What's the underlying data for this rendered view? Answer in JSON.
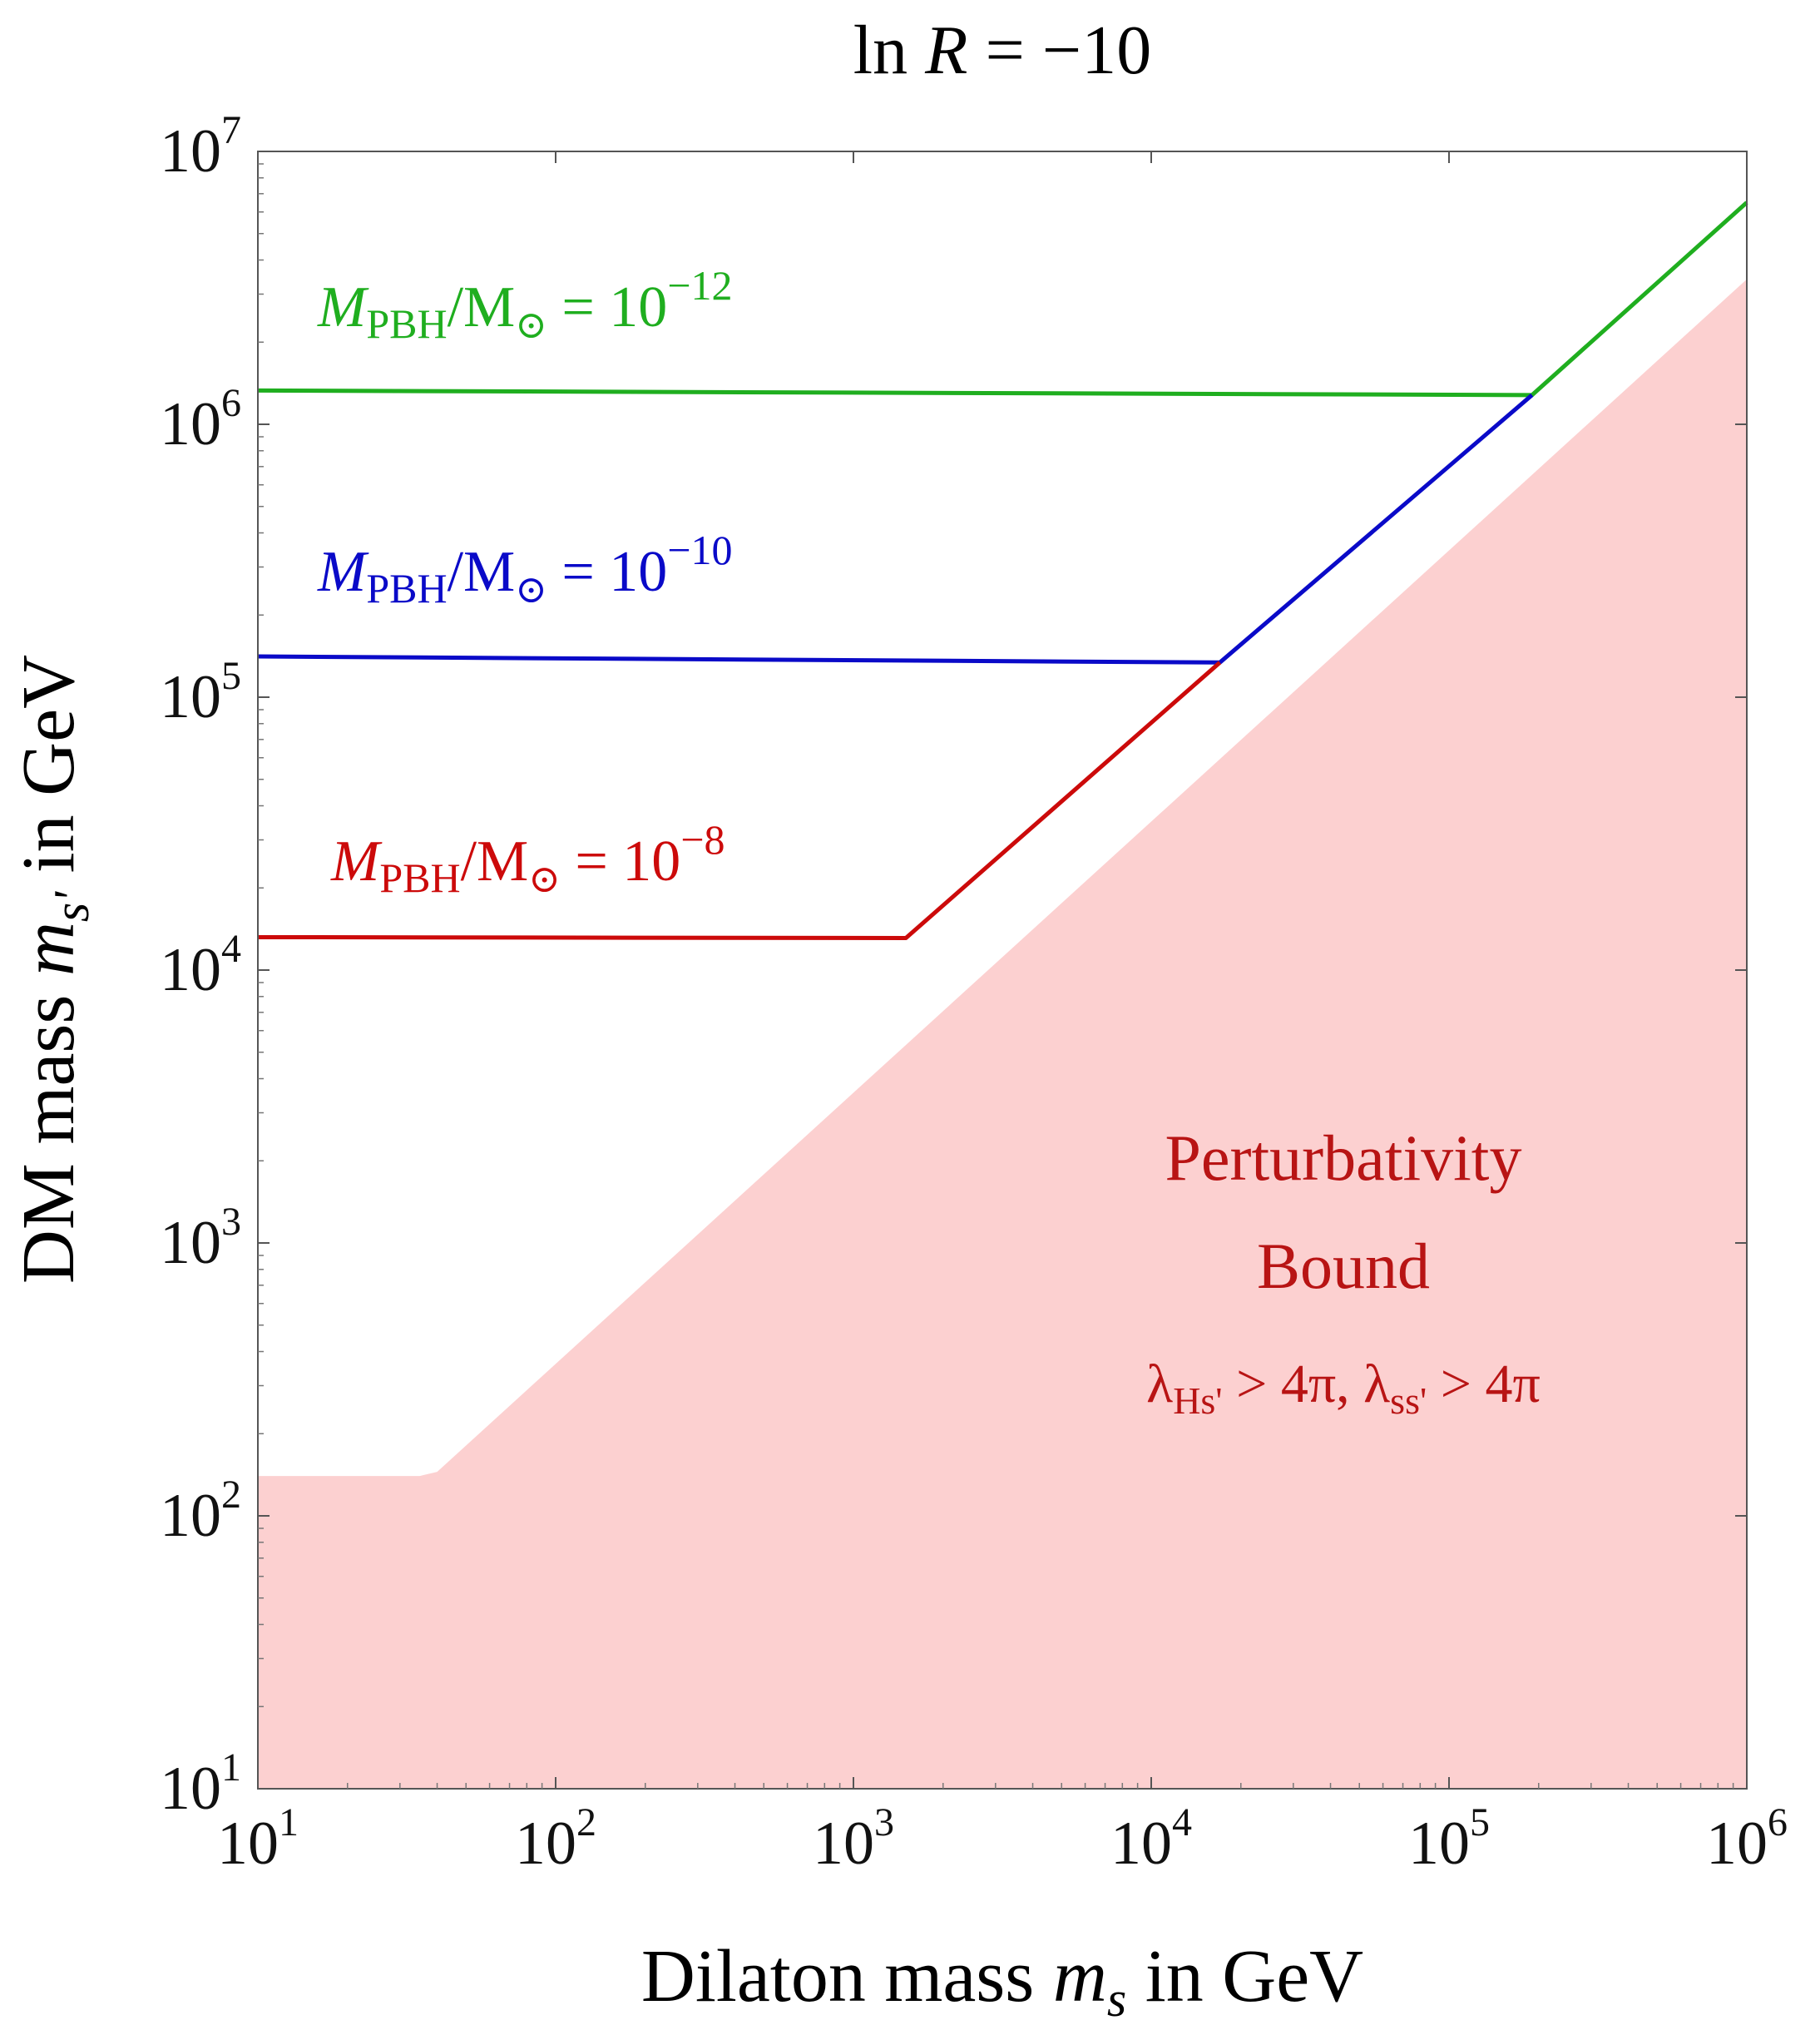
{
  "chart_data": {
    "type": "line",
    "title": "ln R = −10",
    "xlabel": "Dilaton mass m_s in GeV",
    "ylabel": "DM mass m_{s'} in GeV",
    "x_scale": "log",
    "y_scale": "log",
    "xlim": [
      10,
      1000000
    ],
    "ylim": [
      10,
      10000000
    ],
    "x_ticks": [
      "10^1",
      "10^2",
      "10^3",
      "10^4",
      "10^5",
      "10^6"
    ],
    "y_ticks": [
      "10^1",
      "10^2",
      "10^3",
      "10^4",
      "10^5",
      "10^6",
      "10^7"
    ],
    "grid": false,
    "series": [
      {
        "name": "M_PBH/M_⊙ = 10^{−12}",
        "color": "#1fae1f",
        "points": [
          [
            10,
            1330000
          ],
          [
            190000,
            1280000
          ],
          [
            1000000,
            6500000
          ]
        ]
      },
      {
        "name": "M_PBH/M_⊙ = 10^{−10}",
        "color": "#0a0ac8",
        "points": [
          [
            10,
            141000
          ],
          [
            17000,
            134000
          ],
          [
            190000,
            1280000
          ]
        ]
      },
      {
        "name": "M_PBH/M_⊙ = 10^{−8}",
        "color": "#cc0a0a",
        "points": [
          [
            10,
            13200
          ],
          [
            1500,
            13100
          ],
          [
            17000,
            134000
          ]
        ]
      }
    ],
    "regions": [
      {
        "name": "Perturbativity Bound",
        "condition": "λ_{Hs'} > 4π, λ_{ss'} > 4π",
        "fill": "#fcd0d0",
        "boundary": [
          [
            10,
            140
          ],
          [
            35,
            140
          ],
          [
            40,
            145
          ],
          [
            1000000,
            3400000
          ]
        ]
      }
    ],
    "annotations": {
      "series_labels": [
        {
          "prefix": "M",
          "sub": "PBH",
          "middle": "/M",
          "sun": "⊙",
          "eq": " = 10",
          "exp": "−12"
        },
        {
          "prefix": "M",
          "sub": "PBH",
          "middle": "/M",
          "sun": "⊙",
          "eq": " = 10",
          "exp": "−10"
        },
        {
          "prefix": "M",
          "sub": "PBH",
          "middle": "/M",
          "sun": "⊙",
          "eq": " = 10",
          "exp": "−8"
        }
      ],
      "region_line1": "Perturbativity",
      "region_line2": "Bound",
      "region_condition_parts": {
        "lambda": "λ",
        "sub1": "Hs'",
        "gt1": " > 4π, ",
        "sub2": "ss'",
        "gt2": " > 4π"
      }
    },
    "colors": {
      "green": "#1fae1f",
      "blue": "#0a0ac8",
      "red": "#cc0a0a",
      "region_fill": "#fcd0d0",
      "region_text": "#b81414"
    }
  }
}
